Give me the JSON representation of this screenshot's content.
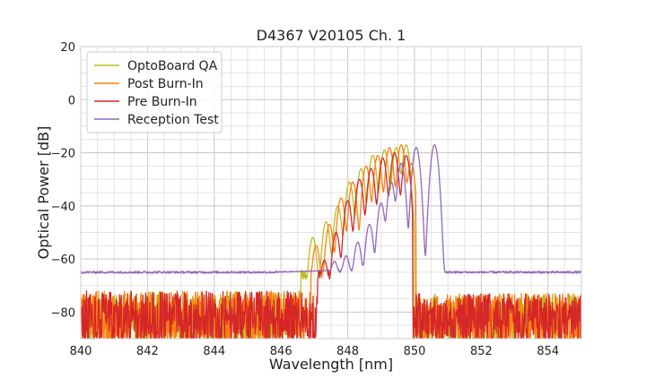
{
  "chart_data": {
    "type": "line",
    "title": "D4367 V20105 Ch. 1",
    "xlabel": "Wavelength [nm]",
    "ylabel": "Optical Power [dB]",
    "xlim": [
      840,
      855
    ],
    "ylim": [
      -90,
      20
    ],
    "x_ticks": [
      "840",
      "842",
      "844",
      "846",
      "848",
      "850",
      "852",
      "854"
    ],
    "y_ticks": [
      "−80",
      "−60",
      "−40",
      "−20",
      "0",
      "20"
    ],
    "grid": true,
    "legend": "top-left",
    "series": [
      {
        "name": "OptoBoard QA",
        "color": "#bcbd22",
        "peaks": [
          [
            846.95,
            -52
          ],
          [
            847.35,
            -46
          ],
          [
            847.7,
            -40
          ],
          [
            848.05,
            -31
          ],
          [
            848.4,
            -26
          ],
          [
            848.75,
            -21
          ],
          [
            849.1,
            -19
          ],
          [
            849.45,
            -18
          ],
          [
            849.75,
            -17
          ]
        ],
        "noise_x": [
          840,
          846.6
        ],
        "cutoff": 850.0
      },
      {
        "name": "Post Burn-In",
        "color": "#ff7f0e",
        "peaks": [
          [
            847.05,
            -55
          ],
          [
            847.45,
            -47
          ],
          [
            847.8,
            -37
          ],
          [
            848.15,
            -31
          ],
          [
            848.55,
            -25
          ],
          [
            848.9,
            -21
          ],
          [
            849.25,
            -18
          ],
          [
            849.6,
            -17
          ],
          [
            849.9,
            -24
          ]
        ],
        "noise_x": [
          840,
          846.9
        ],
        "cutoff": 850.05
      },
      {
        "name": "Pre Burn-In",
        "color": "#d62728",
        "peaks": [
          [
            847.3,
            -61
          ],
          [
            847.65,
            -50
          ],
          [
            848.0,
            -38
          ],
          [
            848.35,
            -30
          ],
          [
            848.7,
            -26
          ],
          [
            849.05,
            -22
          ],
          [
            849.4,
            -20
          ],
          [
            849.75,
            -21
          ]
        ],
        "noise_x": [
          840,
          847.1
        ],
        "cutoff": 849.95
      },
      {
        "name": "Reception Test",
        "color": "#9467bd",
        "peaks": [
          [
            847.6,
            -63
          ],
          [
            847.95,
            -60
          ],
          [
            848.3,
            -54
          ],
          [
            848.65,
            -47
          ],
          [
            849.0,
            -39
          ],
          [
            849.3,
            -31
          ],
          [
            849.6,
            -24
          ],
          [
            850.05,
            -18
          ],
          [
            850.6,
            -17
          ]
        ],
        "baseline": -65,
        "cutoff": 850.9
      }
    ]
  }
}
